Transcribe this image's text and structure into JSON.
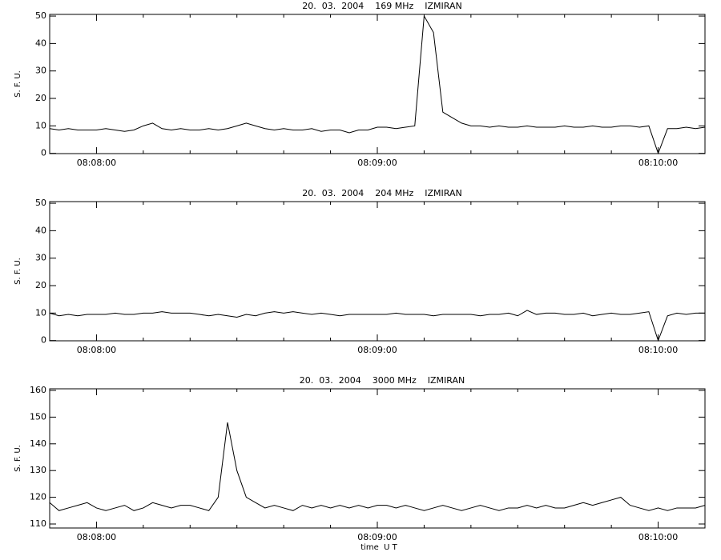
{
  "chart_data": [
    {
      "type": "line",
      "title": "20.  03.  2004    169 MHz    IZMIRAN",
      "y_label": "S. F. U.",
      "x": [
        "08:07:50",
        "08:07:52",
        "08:07:54",
        "08:07:56",
        "08:07:58",
        "08:08:00",
        "08:08:02",
        "08:08:04",
        "08:08:06",
        "08:08:08",
        "08:08:10",
        "08:08:12",
        "08:08:14",
        "08:08:16",
        "08:08:18",
        "08:08:20",
        "08:08:22",
        "08:08:24",
        "08:08:26",
        "08:08:28",
        "08:08:30",
        "08:08:32",
        "08:08:34",
        "08:08:36",
        "08:08:38",
        "08:08:40",
        "08:08:42",
        "08:08:44",
        "08:08:46",
        "08:08:48",
        "08:08:50",
        "08:08:52",
        "08:08:54",
        "08:08:56",
        "08:08:58",
        "08:09:00",
        "08:09:02",
        "08:09:04",
        "08:09:06",
        "08:09:08",
        "08:09:10",
        "08:09:12",
        "08:09:14",
        "08:09:16",
        "08:09:18",
        "08:09:20",
        "08:09:22",
        "08:09:24",
        "08:09:26",
        "08:09:28",
        "08:09:30",
        "08:09:32",
        "08:09:34",
        "08:09:36",
        "08:09:38",
        "08:09:40",
        "08:09:42",
        "08:09:44",
        "08:09:46",
        "08:09:48",
        "08:09:50",
        "08:09:52",
        "08:09:54",
        "08:09:56",
        "08:09:58",
        "08:10:00",
        "08:10:02",
        "08:10:04",
        "08:10:06",
        "08:10:08",
        "08:10:10"
      ],
      "series": [
        {
          "color": "#000000",
          "values": [
            9,
            8.5,
            9,
            8.5,
            8.5,
            8.5,
            9,
            8.5,
            8,
            8.5,
            10,
            11,
            9,
            8.5,
            9,
            8.5,
            8.5,
            9,
            8.5,
            9,
            10,
            11,
            10,
            9,
            8.5,
            9,
            8.5,
            8.5,
            9,
            8,
            8.5,
            8.5,
            7.5,
            8.5,
            8.5,
            9.5,
            9.5,
            9,
            9.5,
            10,
            50,
            44,
            15,
            13,
            11,
            10,
            10,
            9.5,
            10,
            9.5,
            9.5,
            10,
            9.5,
            9.5,
            9.5,
            10,
            9.5,
            9.5,
            10,
            9.5,
            9.5,
            10,
            10,
            9.5,
            10,
            0,
            9,
            9,
            9.5,
            9,
            9.5
          ]
        }
      ],
      "xlim": [
        "08:07:50",
        "08:10:10"
      ],
      "xticks": [
        "08:08:00",
        "08:09:00",
        "08:10:00"
      ],
      "xminorticks": [
        "08:08:10",
        "08:08:20",
        "08:08:30",
        "08:08:40",
        "08:08:50",
        "08:09:10",
        "08:09:20",
        "08:09:30",
        "08:09:40",
        "08:09:50"
      ],
      "ylim": [
        -0.1,
        50.6
      ],
      "yticks": [
        0,
        10,
        20,
        30,
        40,
        50
      ]
    },
    {
      "type": "line",
      "title": "20.  03.  2004    204 MHz    IZMIRAN",
      "y_label": "S. F. U.",
      "x": [
        "08:07:50",
        "08:07:52",
        "08:07:54",
        "08:07:56",
        "08:07:58",
        "08:08:00",
        "08:08:02",
        "08:08:04",
        "08:08:06",
        "08:08:08",
        "08:08:10",
        "08:08:12",
        "08:08:14",
        "08:08:16",
        "08:08:18",
        "08:08:20",
        "08:08:22",
        "08:08:24",
        "08:08:26",
        "08:08:28",
        "08:08:30",
        "08:08:32",
        "08:08:34",
        "08:08:36",
        "08:08:38",
        "08:08:40",
        "08:08:42",
        "08:08:44",
        "08:08:46",
        "08:08:48",
        "08:08:50",
        "08:08:52",
        "08:08:54",
        "08:08:56",
        "08:08:58",
        "08:09:00",
        "08:09:02",
        "08:09:04",
        "08:09:06",
        "08:09:08",
        "08:09:10",
        "08:09:12",
        "08:09:14",
        "08:09:16",
        "08:09:18",
        "08:09:20",
        "08:09:22",
        "08:09:24",
        "08:09:26",
        "08:09:28",
        "08:09:30",
        "08:09:32",
        "08:09:34",
        "08:09:36",
        "08:09:38",
        "08:09:40",
        "08:09:42",
        "08:09:44",
        "08:09:46",
        "08:09:48",
        "08:09:50",
        "08:09:52",
        "08:09:54",
        "08:09:56",
        "08:09:58",
        "08:10:00",
        "08:10:02",
        "08:10:04",
        "08:10:06",
        "08:10:08",
        "08:10:10"
      ],
      "series": [
        {
          "color": "#000000",
          "values": [
            10,
            9,
            9.5,
            9,
            9.5,
            9.5,
            9.5,
            10,
            9.5,
            9.5,
            10,
            10,
            10.5,
            10,
            10,
            10,
            9.5,
            9,
            9.5,
            9,
            8.5,
            9.5,
            9,
            10,
            10.5,
            10,
            10.5,
            10,
            9.5,
            10,
            9.5,
            9,
            9.5,
            9.5,
            9.5,
            9.5,
            9.5,
            10,
            9.5,
            9.5,
            9.5,
            9,
            9.5,
            9.5,
            9.5,
            9.5,
            9,
            9.5,
            9.5,
            10,
            9,
            11,
            9.5,
            10,
            10,
            9.5,
            9.5,
            10,
            9,
            9.5,
            10,
            9.5,
            9.5,
            10,
            10.5,
            0,
            9,
            10,
            9.5,
            10,
            10
          ]
        }
      ],
      "xlim": [
        "08:07:50",
        "08:10:10"
      ],
      "xticks": [
        "08:08:00",
        "08:09:00",
        "08:10:00"
      ],
      "xminorticks": [
        "08:08:10",
        "08:08:20",
        "08:08:30",
        "08:08:40",
        "08:08:50",
        "08:09:10",
        "08:09:20",
        "08:09:30",
        "08:09:40",
        "08:09:50"
      ],
      "ylim": [
        -0.1,
        50.6
      ],
      "yticks": [
        0,
        10,
        20,
        30,
        40,
        50
      ]
    },
    {
      "type": "line",
      "title": "20.  03.  2004    3000 MHz    IZMIRAN",
      "y_label": "S. F. U.",
      "x_label": "time  U T",
      "x": [
        "08:07:50",
        "08:07:52",
        "08:07:54",
        "08:07:56",
        "08:07:58",
        "08:08:00",
        "08:08:02",
        "08:08:04",
        "08:08:06",
        "08:08:08",
        "08:08:10",
        "08:08:12",
        "08:08:14",
        "08:08:16",
        "08:08:18",
        "08:08:20",
        "08:08:22",
        "08:08:24",
        "08:08:26",
        "08:08:28",
        "08:08:30",
        "08:08:32",
        "08:08:34",
        "08:08:36",
        "08:08:38",
        "08:08:40",
        "08:08:42",
        "08:08:44",
        "08:08:46",
        "08:08:48",
        "08:08:50",
        "08:08:52",
        "08:08:54",
        "08:08:56",
        "08:08:58",
        "08:09:00",
        "08:09:02",
        "08:09:04",
        "08:09:06",
        "08:09:08",
        "08:09:10",
        "08:09:12",
        "08:09:14",
        "08:09:16",
        "08:09:18",
        "08:09:20",
        "08:09:22",
        "08:09:24",
        "08:09:26",
        "08:09:28",
        "08:09:30",
        "08:09:32",
        "08:09:34",
        "08:09:36",
        "08:09:38",
        "08:09:40",
        "08:09:42",
        "08:09:44",
        "08:09:46",
        "08:09:48",
        "08:09:50",
        "08:09:52",
        "08:09:54",
        "08:09:56",
        "08:09:58",
        "08:10:00",
        "08:10:02",
        "08:10:04",
        "08:10:06",
        "08:10:08",
        "08:10:10"
      ],
      "series": [
        {
          "color": "#000000",
          "values": [
            118,
            115,
            116,
            117,
            118,
            116,
            115,
            116,
            117,
            115,
            116,
            118,
            117,
            116,
            117,
            117,
            116,
            115,
            120,
            148,
            130,
            120,
            118,
            116,
            117,
            116,
            115,
            117,
            116,
            117,
            116,
            117,
            116,
            117,
            116,
            117,
            117,
            116,
            117,
            116,
            115,
            116,
            117,
            116,
            115,
            116,
            117,
            116,
            115,
            116,
            116,
            117,
            116,
            117,
            116,
            116,
            117,
            118,
            117,
            118,
            119,
            120,
            117,
            116,
            115,
            116,
            115,
            116,
            116,
            116,
            117
          ]
        }
      ],
      "xlim": [
        "08:07:50",
        "08:10:10"
      ],
      "xticks": [
        "08:08:00",
        "08:09:00",
        "08:10:00"
      ],
      "xminorticks": [
        "08:08:10",
        "08:08:20",
        "08:08:30",
        "08:08:40",
        "08:08:50",
        "08:09:10",
        "08:09:20",
        "08:09:30",
        "08:09:40",
        "08:09:50"
      ],
      "ylim": [
        108.5,
        160.6
      ],
      "yticks": [
        110,
        120,
        130,
        140,
        150,
        160
      ]
    }
  ]
}
